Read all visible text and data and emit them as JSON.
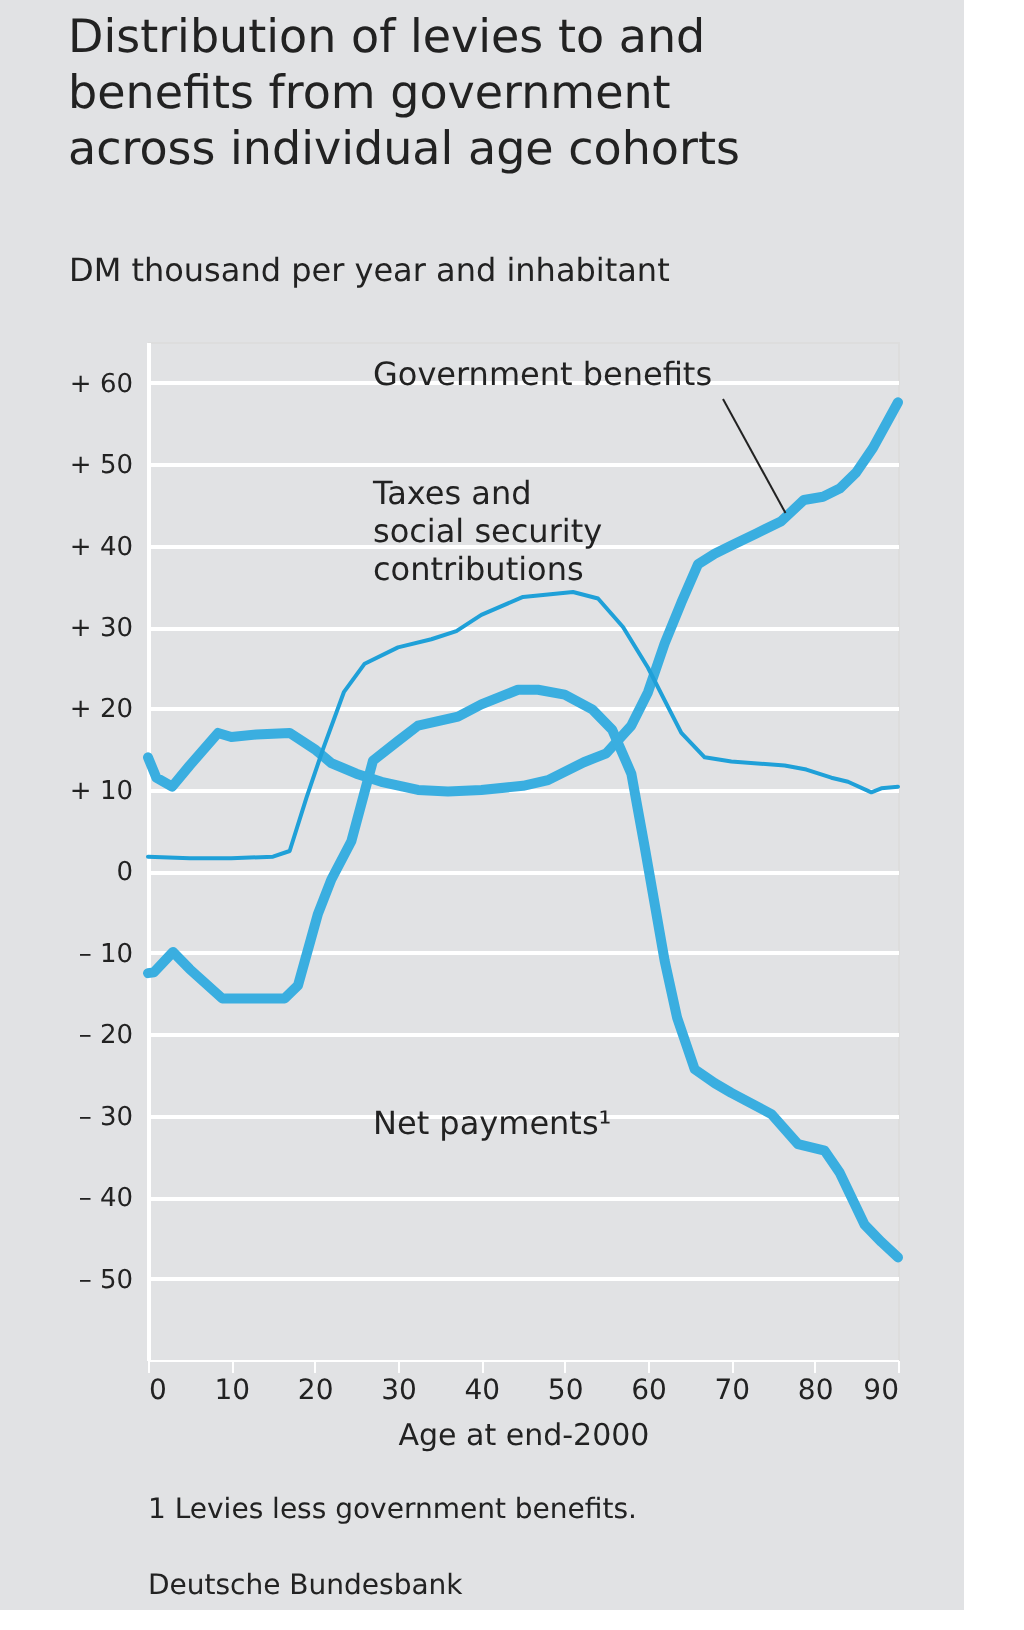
{
  "chart_data": {
    "type": "line",
    "title": "Distribution of levies to and benefits from government across individual age cohorts",
    "ylabel": "DM thousand per year and inhabitant",
    "xlabel": "Age at end-2000",
    "xlim": [
      0,
      90
    ],
    "xticks": [
      0,
      10,
      20,
      30,
      40,
      50,
      60,
      70,
      80,
      90
    ],
    "ylim": [
      -60,
      65
    ],
    "yticks": [
      {
        "value": 60,
        "label": "+ 60"
      },
      {
        "value": 50,
        "label": "+ 50"
      },
      {
        "value": 40,
        "label": "+ 40"
      },
      {
        "value": 30,
        "label": "+ 30"
      },
      {
        "value": 20,
        "label": "+ 20"
      },
      {
        "value": 10,
        "label": "+ 10"
      },
      0,
      {
        "value": -10,
        "label": "– 10"
      },
      {
        "value": -20,
        "label": "– 20"
      },
      {
        "value": -30,
        "label": "– 30"
      },
      {
        "value": -40,
        "label": "– 40"
      },
      {
        "value": -50,
        "label": "– 50"
      }
    ],
    "grid": "y",
    "legend": false,
    "line_style": "solid",
    "marker": "none",
    "series": [
      {
        "name": "Government benefits",
        "color": "#3aaee0",
        "x": [
          0,
          1,
          2.9,
          5,
          8.4,
          10,
          13,
          17,
          20,
          22,
          25,
          28,
          32.4,
          36,
          40,
          45,
          48,
          52.3,
          55,
          58,
          60,
          62,
          64,
          66,
          68,
          70,
          73,
          76,
          78.7,
          81,
          83,
          85,
          87,
          90
        ],
        "values": [
          14,
          11.5,
          10.4,
          13,
          17,
          16.5,
          16.8,
          17,
          15,
          13.3,
          12,
          11,
          10,
          9.8,
          10,
          10.5,
          11.2,
          13.4,
          14.5,
          17.9,
          22,
          28,
          33,
          37.7,
          39,
          40,
          41.5,
          43,
          45.6,
          46,
          47,
          49,
          52,
          57.6
        ]
      },
      {
        "name": "Taxes and social security contributions",
        "color": "#1fa0d8",
        "x": [
          0,
          5,
          10,
          15,
          17,
          19,
          21,
          23.5,
          26,
          30,
          34,
          37,
          40,
          45,
          48,
          51,
          54,
          57,
          60,
          62,
          64,
          66.8,
          70,
          76.4,
          79,
          82,
          84,
          86.8,
          88,
          90
        ],
        "values": [
          1.8,
          1.6,
          1.6,
          1.8,
          2.5,
          9,
          15,
          22,
          25.5,
          27.5,
          28.5,
          29.5,
          31.5,
          33.7,
          34,
          34.3,
          33.5,
          30,
          25,
          21,
          17,
          14,
          13.5,
          13,
          12.5,
          11.5,
          11,
          9.7,
          10.2,
          10.4
        ]
      },
      {
        "name": "Net payments¹",
        "color": "#3aaee0",
        "x": [
          0,
          0.7,
          3,
          5,
          8.9,
          12,
          16.4,
          18,
          20.4,
          22,
          24.4,
          27,
          30,
          32.4,
          37.2,
          40,
          44.4,
          46.8,
          50,
          53.3,
          55.7,
          58,
          59.6,
          62,
          63.5,
          65.6,
          68,
          70,
          74.8,
          78,
          81.2,
          83,
          86,
          88,
          90
        ],
        "values": [
          -12.5,
          -12.4,
          -9.9,
          -12,
          -15.6,
          -15.6,
          -15.6,
          -14,
          -5.2,
          -1,
          3.7,
          13.6,
          16,
          17.9,
          19,
          20.5,
          22.3,
          22.3,
          21.7,
          19.9,
          17.4,
          12,
          3,
          -11,
          -18,
          -24.3,
          -26,
          -27.2,
          -29.8,
          -33.5,
          -34.3,
          -37,
          -43.4,
          -45.5,
          -47.4
        ]
      }
    ],
    "annotations": [
      "1 Levies less government benefits.",
      "Deutsche Bundesbank"
    ]
  }
}
